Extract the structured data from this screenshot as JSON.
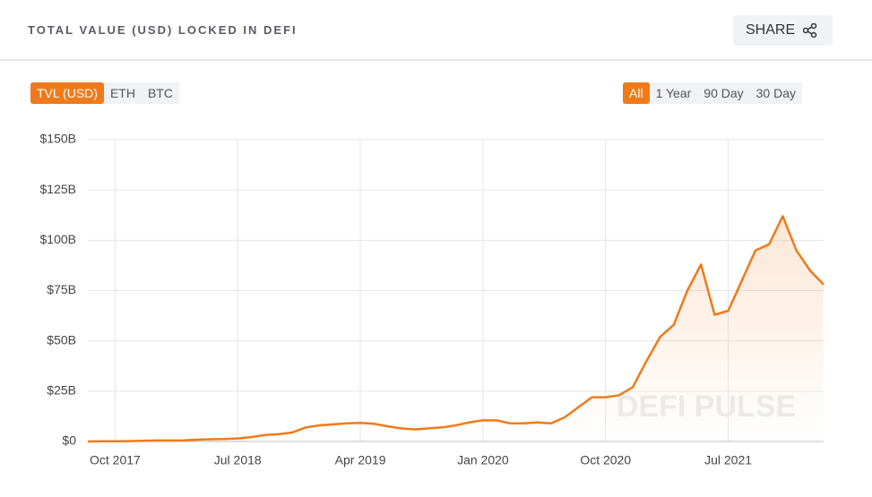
{
  "header": {
    "title": "TOTAL VALUE (USD) LOCKED IN DEFI",
    "share": "SHARE"
  },
  "tabs": {
    "units": [
      "TVL (USD)",
      "ETH",
      "BTC"
    ],
    "ranges": [
      "All",
      "1 Year",
      "90 Day",
      "30 Day"
    ]
  },
  "chart_data": {
    "type": "line",
    "watermark": "DEFI PULSE",
    "color": "#f07a1a",
    "grid": true,
    "x": [
      "2017-08",
      "2017-09",
      "2017-10",
      "2017-11",
      "2017-12",
      "2018-01",
      "2018-02",
      "2018-03",
      "2018-04",
      "2018-05",
      "2018-06",
      "2018-07",
      "2018-08",
      "2018-09",
      "2018-10",
      "2018-11",
      "2018-12",
      "2019-01",
      "2019-02",
      "2019-03",
      "2019-04",
      "2019-05",
      "2019-06",
      "2019-07",
      "2019-08",
      "2019-09",
      "2019-10",
      "2019-11",
      "2019-12",
      "2020-01",
      "2020-02",
      "2020-03",
      "2020-04",
      "2020-05",
      "2020-06",
      "2020-07",
      "2020-08",
      "2020-09",
      "2020-10",
      "2020-11",
      "2020-12",
      "2021-01",
      "2021-02",
      "2021-03",
      "2021-04",
      "2021-05",
      "2021-06",
      "2021-07",
      "2021-08",
      "2021-09",
      "2021-10",
      "2021-11",
      "2021-12",
      "2022-01",
      "2022-02"
    ],
    "values": [
      0,
      0.1,
      0.1,
      0.2,
      0.3,
      0.5,
      0.5,
      0.6,
      0.9,
      1.1,
      1.2,
      1.5,
      2.2,
      3.2,
      3.6,
      4.5,
      7,
      8,
      8.5,
      9,
      9.2,
      8.8,
      7.5,
      6.5,
      6,
      6.5,
      7,
      8,
      9.5,
      10.5,
      10.5,
      9,
      9,
      9.5,
      9,
      12,
      17,
      22,
      22,
      23,
      27,
      40,
      52,
      58,
      75,
      88,
      63,
      65,
      80,
      95,
      98,
      112,
      95,
      85,
      78
    ],
    "xlim": [
      "2017-08",
      "2022-02"
    ],
    "xticks": [
      {
        "value": "2017-10",
        "label": "Oct 2017"
      },
      {
        "value": "2018-07",
        "label": "Jul 2018"
      },
      {
        "value": "2019-04",
        "label": "Apr 2019"
      },
      {
        "value": "2020-01",
        "label": "Jan 2020"
      },
      {
        "value": "2020-10",
        "label": "Oct 2020"
      },
      {
        "value": "2021-07",
        "label": "Jul 2021"
      }
    ],
    "ylim": [
      0,
      150
    ],
    "yticks": [
      {
        "value": 0,
        "label": "$0"
      },
      {
        "value": 25,
        "label": "$25B"
      },
      {
        "value": 50,
        "label": "$50B"
      },
      {
        "value": 75,
        "label": "$75B"
      },
      {
        "value": 100,
        "label": "$100B"
      },
      {
        "value": 125,
        "label": "$125B"
      },
      {
        "value": 150,
        "label": "$150B"
      }
    ]
  }
}
